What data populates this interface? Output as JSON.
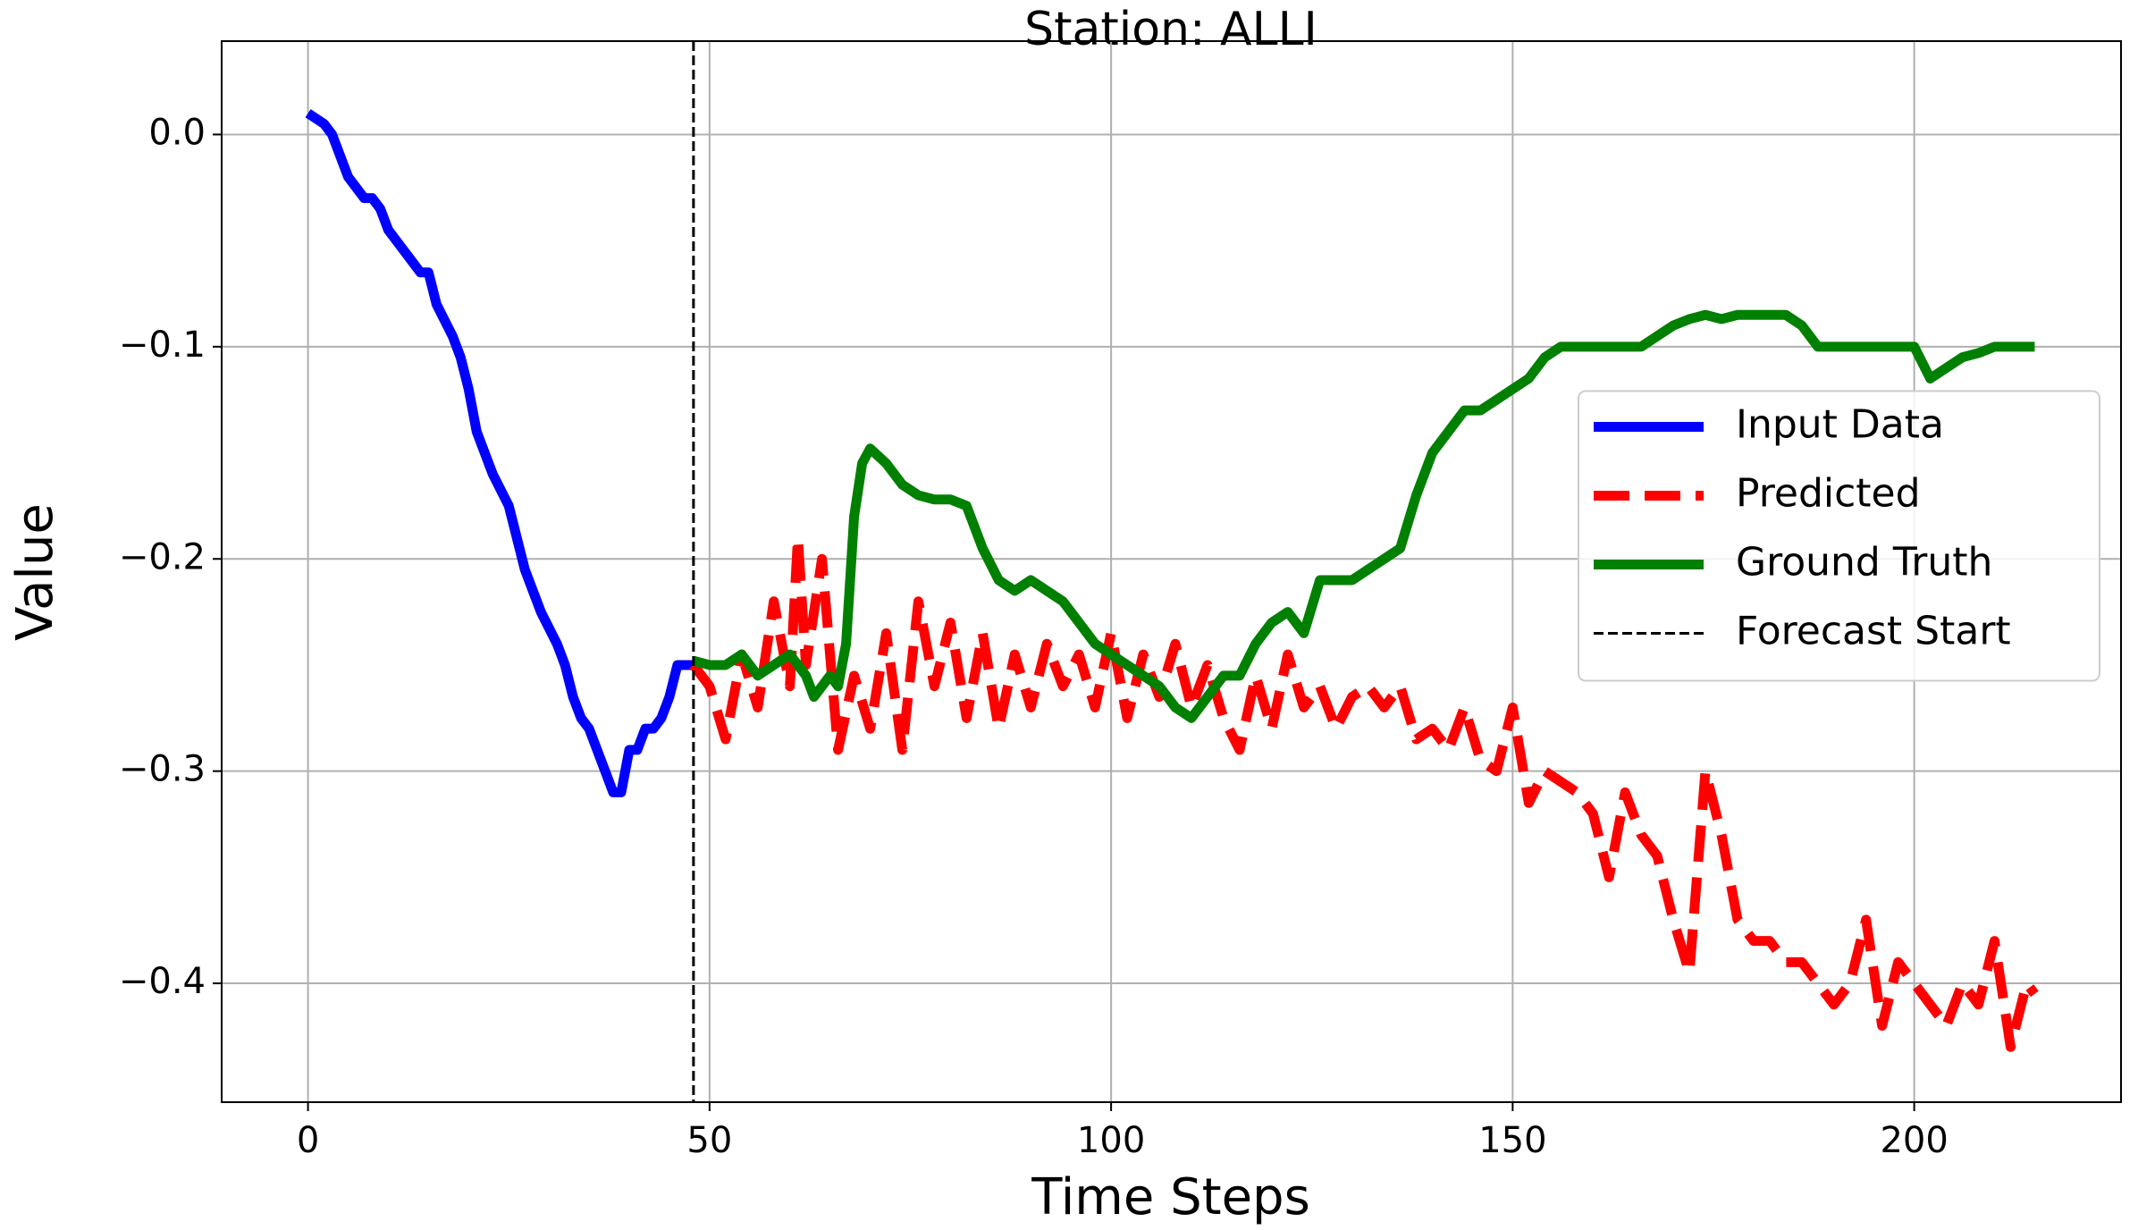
{
  "chart_data": {
    "type": "line",
    "title": "Station: ALLI",
    "xlabel": "Time Steps",
    "ylabel": "Value",
    "xlim": [
      -10.75,
      225.75
    ],
    "ylim": [
      -0.456,
      0.044
    ],
    "xticks": [
      0,
      50,
      100,
      150,
      200
    ],
    "yticks": [
      {
        "value": 0.0,
        "label": "0.0"
      },
      {
        "value": -0.1,
        "label": "−0.1"
      },
      {
        "value": -0.2,
        "label": "−0.2"
      },
      {
        "value": -0.3,
        "label": "−0.3"
      },
      {
        "value": -0.4,
        "label": "−0.4"
      }
    ],
    "grid": true,
    "legend": "center right",
    "series": [
      {
        "name": "Input Data",
        "color": "#0000ff",
        "dash": "solid",
        "x": [
          0,
          2,
          3,
          5,
          7,
          8,
          9,
          10,
          11,
          13,
          14,
          15,
          16,
          18,
          19,
          20,
          21,
          23,
          25,
          26,
          27,
          28,
          29,
          31,
          32,
          33,
          34,
          35,
          36,
          37,
          38,
          39,
          40,
          41,
          42,
          43,
          44,
          45,
          46,
          47,
          48
        ],
        "values": [
          0.01,
          0.005,
          0.0,
          -0.02,
          -0.03,
          -0.03,
          -0.035,
          -0.045,
          -0.05,
          -0.06,
          -0.065,
          -0.065,
          -0.08,
          -0.095,
          -0.105,
          -0.12,
          -0.14,
          -0.16,
          -0.175,
          -0.19,
          -0.205,
          -0.215,
          -0.225,
          -0.24,
          -0.25,
          -0.265,
          -0.275,
          -0.28,
          -0.29,
          -0.3,
          -0.31,
          -0.31,
          -0.29,
          -0.29,
          -0.28,
          -0.28,
          -0.275,
          -0.265,
          -0.25,
          -0.25,
          -0.25
        ]
      },
      {
        "name": "Predicted",
        "color": "#ff0000",
        "dash": "dashed",
        "x": [
          48,
          50,
          52,
          54,
          56,
          58,
          60,
          61,
          62,
          64,
          66,
          68,
          70,
          72,
          74,
          76,
          78,
          80,
          82,
          84,
          86,
          88,
          90,
          92,
          94,
          96,
          98,
          100,
          102,
          104,
          106,
          108,
          110,
          112,
          114,
          116,
          118,
          120,
          122,
          124,
          126,
          128,
          130,
          132,
          134,
          136,
          138,
          140,
          142,
          144,
          146,
          148,
          150,
          152,
          154,
          156,
          158,
          160,
          162,
          164,
          166,
          168,
          170,
          172,
          174,
          176,
          178,
          180,
          182,
          184,
          186,
          188,
          190,
          192,
          194,
          196,
          198,
          200,
          202,
          204,
          206,
          208,
          210,
          212,
          214,
          215
        ],
        "values": [
          -0.25,
          -0.26,
          -0.285,
          -0.245,
          -0.27,
          -0.22,
          -0.26,
          -0.19,
          -0.25,
          -0.2,
          -0.29,
          -0.255,
          -0.28,
          -0.235,
          -0.29,
          -0.22,
          -0.26,
          -0.23,
          -0.275,
          -0.235,
          -0.28,
          -0.245,
          -0.27,
          -0.24,
          -0.26,
          -0.245,
          -0.27,
          -0.235,
          -0.275,
          -0.245,
          -0.265,
          -0.24,
          -0.27,
          -0.25,
          -0.275,
          -0.29,
          -0.255,
          -0.28,
          -0.245,
          -0.27,
          -0.26,
          -0.28,
          -0.265,
          -0.26,
          -0.27,
          -0.26,
          -0.285,
          -0.28,
          -0.29,
          -0.27,
          -0.295,
          -0.3,
          -0.27,
          -0.315,
          -0.3,
          -0.305,
          -0.31,
          -0.32,
          -0.35,
          -0.31,
          -0.33,
          -0.34,
          -0.37,
          -0.395,
          -0.3,
          -0.33,
          -0.37,
          -0.38,
          -0.38,
          -0.39,
          -0.39,
          -0.4,
          -0.41,
          -0.4,
          -0.37,
          -0.42,
          -0.39,
          -0.4,
          -0.41,
          -0.42,
          -0.4,
          -0.41,
          -0.38,
          -0.43,
          -0.4,
          -0.405
        ]
      },
      {
        "name": "Ground Truth",
        "color": "#008000",
        "dash": "solid",
        "x": [
          48,
          50,
          52,
          54,
          56,
          58,
          60,
          62,
          63,
          65,
          66,
          67,
          68,
          69,
          70,
          72,
          74,
          76,
          78,
          80,
          82,
          84,
          86,
          88,
          90,
          92,
          94,
          96,
          98,
          100,
          102,
          104,
          106,
          108,
          110,
          112,
          114,
          116,
          118,
          120,
          122,
          124,
          126,
          128,
          130,
          132,
          134,
          136,
          138,
          140,
          142,
          144,
          146,
          148,
          150,
          152,
          154,
          156,
          158,
          160,
          162,
          164,
          166,
          168,
          170,
          172,
          174,
          176,
          178,
          180,
          182,
          184,
          186,
          188,
          190,
          192,
          194,
          196,
          198,
          200,
          202,
          204,
          206,
          208,
          210,
          212,
          214,
          215
        ],
        "values": [
          -0.248,
          -0.25,
          -0.25,
          -0.245,
          -0.255,
          -0.25,
          -0.245,
          -0.255,
          -0.265,
          -0.255,
          -0.26,
          -0.24,
          -0.18,
          -0.155,
          -0.148,
          -0.155,
          -0.165,
          -0.17,
          -0.172,
          -0.172,
          -0.175,
          -0.195,
          -0.21,
          -0.215,
          -0.21,
          -0.215,
          -0.22,
          -0.23,
          -0.24,
          -0.245,
          -0.25,
          -0.255,
          -0.26,
          -0.27,
          -0.275,
          -0.265,
          -0.255,
          -0.255,
          -0.24,
          -0.23,
          -0.225,
          -0.235,
          -0.21,
          -0.21,
          -0.21,
          -0.205,
          -0.2,
          -0.195,
          -0.17,
          -0.15,
          -0.14,
          -0.13,
          -0.13,
          -0.125,
          -0.12,
          -0.115,
          -0.105,
          -0.1,
          -0.1,
          -0.1,
          -0.1,
          -0.1,
          -0.1,
          -0.095,
          -0.09,
          -0.087,
          -0.085,
          -0.087,
          -0.085,
          -0.085,
          -0.085,
          -0.085,
          -0.09,
          -0.1,
          -0.1,
          -0.1,
          -0.1,
          -0.1,
          -0.1,
          -0.1,
          -0.115,
          -0.11,
          -0.105,
          -0.103,
          -0.1,
          -0.1,
          -0.1,
          -0.1
        ]
      }
    ],
    "vline": {
      "name": "Forecast Start",
      "x": 48,
      "color": "#000000",
      "dash": "dashed"
    }
  }
}
